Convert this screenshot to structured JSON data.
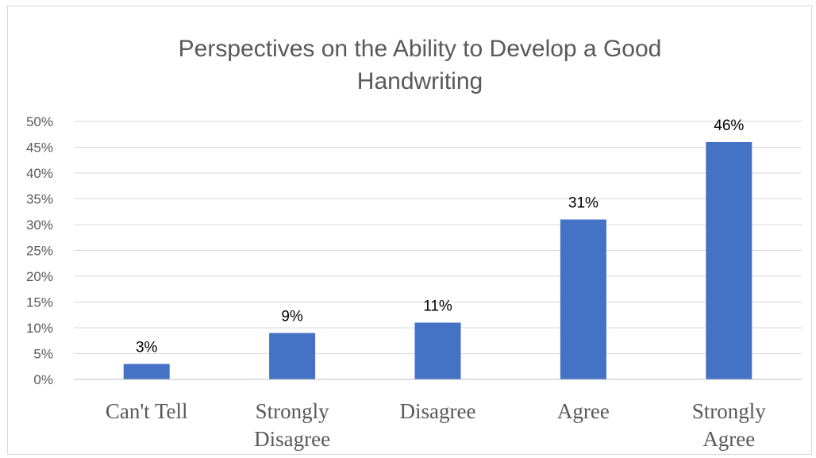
{
  "chart_data": {
    "type": "bar",
    "title": "Perspectives on the Ability to Develop a Good Handwriting",
    "title_lines": [
      "Perspectives on the Ability to Develop a Good",
      "Handwriting"
    ],
    "xlabel": "",
    "ylabel": "",
    "categories": [
      "Can't Tell",
      "Strongly Disagree",
      "Disagree",
      "Agree",
      "Strongly Agree"
    ],
    "category_lines": [
      [
        "Can't Tell"
      ],
      [
        "Strongly",
        "Disagree"
      ],
      [
        "Disagree"
      ],
      [
        "Agree"
      ],
      [
        "Strongly",
        "Agree"
      ]
    ],
    "values": [
      3,
      9,
      11,
      31,
      46
    ],
    "data_labels": [
      "3%",
      "9%",
      "11%",
      "31%",
      "46%"
    ],
    "ylim": [
      0,
      50
    ],
    "yticks": [
      0,
      5,
      10,
      15,
      20,
      25,
      30,
      35,
      40,
      45,
      50
    ],
    "ytick_labels": [
      "0%",
      "5%",
      "10%",
      "15%",
      "20%",
      "25%",
      "30%",
      "35%",
      "40%",
      "45%",
      "50%"
    ],
    "grid": true,
    "legend": "none",
    "colors": {
      "bar": "#4472c4",
      "grid": "#d9d9d9",
      "axis": "#bfbfbf",
      "text": "#595959",
      "data_label": "#000000"
    }
  }
}
